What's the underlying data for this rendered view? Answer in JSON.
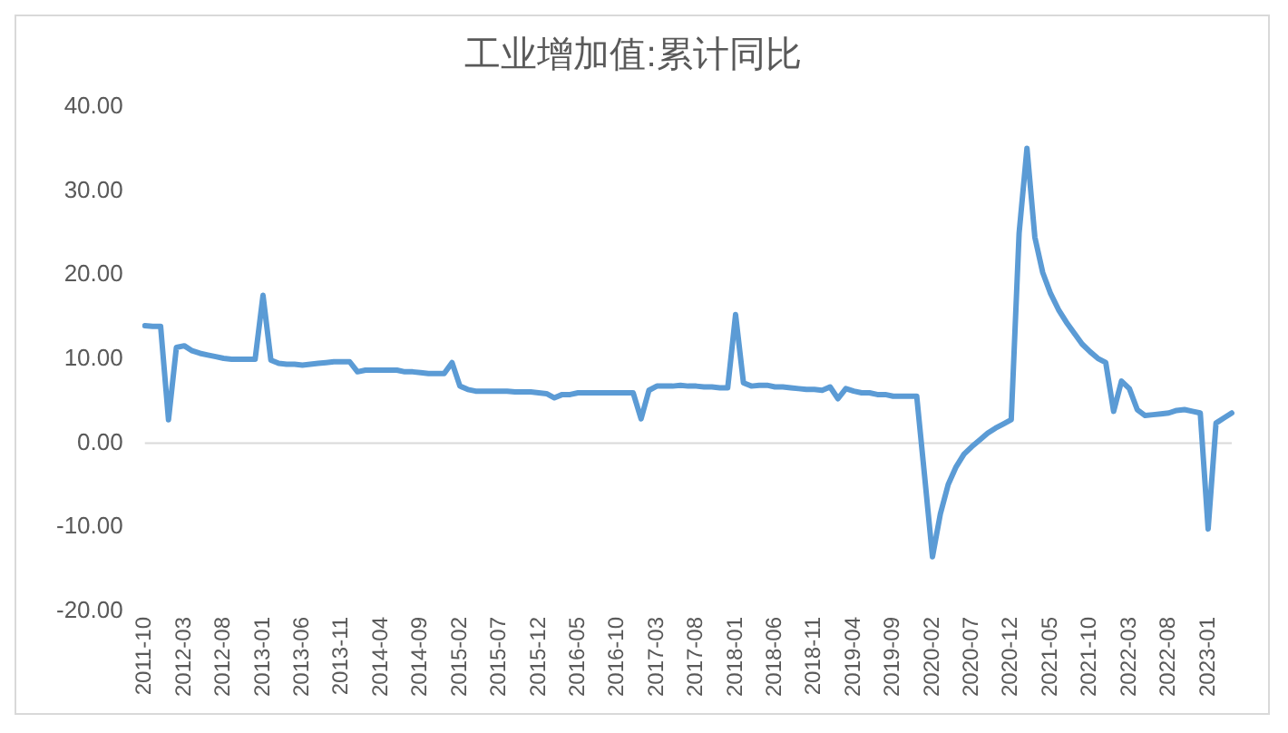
{
  "chart_data": {
    "type": "line",
    "title": "工业增加值:累计同比",
    "categories": [
      "2011-10",
      null,
      null,
      null,
      null,
      "2012-03",
      null,
      null,
      null,
      null,
      "2012-08",
      null,
      null,
      null,
      null,
      "2013-01",
      null,
      null,
      null,
      null,
      "2013-06",
      null,
      null,
      null,
      null,
      "2013-11",
      null,
      null,
      null,
      null,
      "2014-04",
      null,
      null,
      null,
      null,
      "2014-09",
      null,
      null,
      null,
      null,
      "2015-02",
      null,
      null,
      null,
      null,
      "2015-07",
      null,
      null,
      null,
      null,
      "2015-12",
      null,
      null,
      null,
      null,
      "2016-05",
      null,
      null,
      null,
      null,
      "2016-10",
      null,
      null,
      null,
      null,
      "2017-03",
      null,
      null,
      null,
      null,
      "2017-08",
      null,
      null,
      null,
      null,
      "2018-01",
      null,
      null,
      null,
      null,
      "2018-06",
      null,
      null,
      null,
      null,
      "2018-11",
      null,
      null,
      null,
      null,
      "2019-04",
      null,
      null,
      null,
      null,
      "2019-09",
      null,
      null,
      null,
      null,
      "2020-02",
      null,
      null,
      null,
      null,
      "2020-07",
      null,
      null,
      null,
      null,
      "2020-12",
      null,
      null,
      null,
      null,
      "2021-05",
      null,
      null,
      null,
      null,
      "2021-10",
      null,
      null,
      null,
      null,
      "2022-03",
      null,
      null,
      null,
      null,
      "2022-08",
      null,
      null,
      null,
      null,
      "2023-01",
      null,
      null,
      null
    ],
    "series": [
      {
        "color": "#5b9bd5",
        "values": [
          14.0,
          13.9,
          13.9,
          2.8,
          11.4,
          11.6,
          11.0,
          10.7,
          10.5,
          10.3,
          10.1,
          10.0,
          10.0,
          10.0,
          10.0,
          17.6,
          9.9,
          9.5,
          9.4,
          9.4,
          9.3,
          9.4,
          9.5,
          9.6,
          9.7,
          9.7,
          9.7,
          8.5,
          8.7,
          8.7,
          8.7,
          8.7,
          8.7,
          8.5,
          8.5,
          8.4,
          8.3,
          8.3,
          8.3,
          9.6,
          6.8,
          6.4,
          6.2,
          6.2,
          6.2,
          6.2,
          6.2,
          6.1,
          6.1,
          6.1,
          6.0,
          5.9,
          5.4,
          5.8,
          5.8,
          6.0,
          6.0,
          6.0,
          6.0,
          6.0,
          6.0,
          6.0,
          6.0,
          2.9,
          6.3,
          6.8,
          6.8,
          6.8,
          6.9,
          6.8,
          6.8,
          6.7,
          6.7,
          6.6,
          6.6,
          15.3,
          7.2,
          6.8,
          6.9,
          6.9,
          6.7,
          6.7,
          6.6,
          6.5,
          6.4,
          6.4,
          6.3,
          6.7,
          5.3,
          6.5,
          6.2,
          6.0,
          6.0,
          5.8,
          5.8,
          5.6,
          5.6,
          5.6,
          5.6,
          -3.9,
          -13.5,
          -8.4,
          -4.9,
          -2.8,
          -1.3,
          -0.4,
          0.4,
          1.2,
          1.8,
          2.3,
          2.8,
          25.0,
          35.1,
          24.5,
          20.3,
          17.8,
          15.9,
          14.4,
          13.1,
          11.8,
          10.9,
          10.1,
          9.6,
          3.8,
          7.4,
          6.5,
          4.0,
          3.3,
          3.4,
          3.5,
          3.6,
          3.9,
          4.0,
          3.8,
          3.6,
          -10.2,
          2.4,
          3.0,
          3.6
        ]
      }
    ],
    "ylim": [
      -20,
      40
    ],
    "yticks": [
      {
        "value": -20,
        "label": "-20.00"
      },
      {
        "value": -10,
        "label": "-10.00"
      },
      {
        "value": 0,
        "label": "0.00"
      },
      {
        "value": 10,
        "label": "10.00"
      },
      {
        "value": 20,
        "label": "20.00"
      },
      {
        "value": 30,
        "label": "30.00"
      },
      {
        "value": 40,
        "label": "40.00"
      }
    ],
    "ref_lines": [
      {
        "axis": "y",
        "value": 0,
        "color": "#d9d9d9"
      }
    ],
    "grid": false,
    "legend": false,
    "marker": "none",
    "line_style": "solid"
  }
}
